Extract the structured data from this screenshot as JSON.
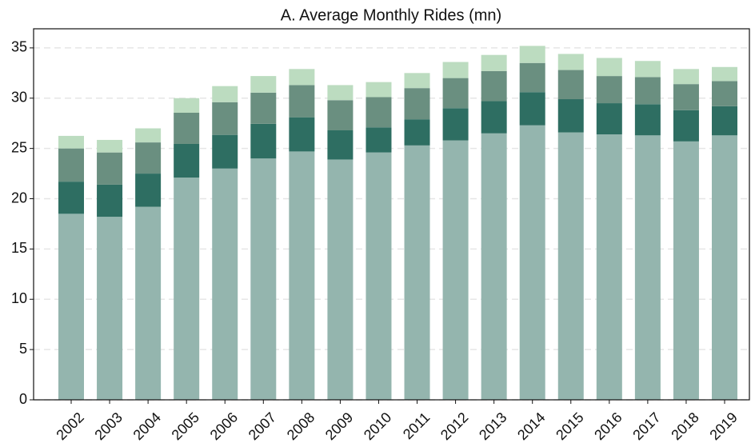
{
  "chart_data": {
    "type": "stacked-bar",
    "title": "A. Average Monthly Rides (mn)",
    "categories": [
      "2002",
      "2003",
      "2004",
      "2005",
      "2006",
      "2007",
      "2008",
      "2009",
      "2010",
      "2011",
      "2012",
      "2013",
      "2014",
      "2015",
      "2016",
      "2017",
      "2018",
      "2019"
    ],
    "series": [
      {
        "color": "#94b5ae",
        "values": [
          18.5,
          18.2,
          19.2,
          22.1,
          23.0,
          24.0,
          24.7,
          23.9,
          24.6,
          25.3,
          25.8,
          26.5,
          27.3,
          26.6,
          26.4,
          26.3,
          25.7,
          26.3
        ]
      },
      {
        "color": "#2e6e62",
        "values": [
          3.2,
          3.2,
          3.3,
          3.35,
          3.35,
          3.45,
          3.4,
          2.9,
          2.5,
          2.6,
          3.2,
          3.2,
          3.3,
          3.3,
          3.1,
          3.1,
          3.1,
          2.9
        ]
      },
      {
        "color": "#6a8f80",
        "values": [
          3.3,
          3.2,
          3.1,
          3.1,
          3.25,
          3.1,
          3.2,
          3.0,
          3.0,
          3.1,
          3.0,
          3.0,
          2.9,
          2.9,
          2.7,
          2.7,
          2.6,
          2.5
        ]
      },
      {
        "color": "#bcdcc0",
        "values": [
          1.25,
          1.25,
          1.4,
          1.45,
          1.6,
          1.65,
          1.6,
          1.5,
          1.5,
          1.5,
          1.6,
          1.6,
          1.7,
          1.6,
          1.8,
          1.6,
          1.5,
          1.4
        ]
      }
    ],
    "ylim": [
      0,
      36.9
    ],
    "yticks": [
      0,
      5,
      10,
      15,
      20,
      25,
      30,
      35
    ],
    "grid": true
  }
}
